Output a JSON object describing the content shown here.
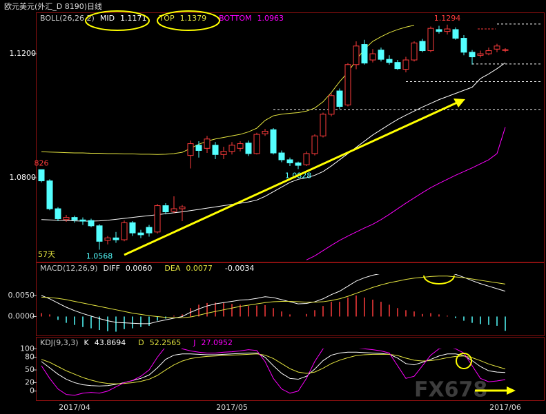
{
  "window_title": "欧元美元(外汇_D 8190)日线",
  "watermark": "FX678",
  "chart_data": [
    {
      "type": "candlestick",
      "title": "BOLL(26,26,2)",
      "categories": [
        null,
        null,
        null,
        null,
        "2017/04",
        null,
        null,
        null,
        null,
        null,
        null,
        null,
        null,
        null,
        null,
        null,
        null,
        null,
        null,
        null,
        null,
        null,
        null,
        "2017/05",
        null,
        null,
        null,
        null,
        null,
        null,
        null,
        null,
        null,
        null,
        null,
        null,
        null,
        null,
        null,
        null,
        null,
        null,
        null,
        null,
        null,
        null,
        null,
        null,
        null,
        null,
        null,
        null,
        null,
        null,
        null,
        null,
        "2017/06"
      ],
      "open": [
        1.0826,
        1.079,
        1.07,
        1.0665,
        1.0672,
        1.0664,
        1.0662,
        1.0645,
        1.0598,
        1.0606,
        1.06,
        1.0655,
        1.0622,
        1.064,
        1.0625,
        1.071,
        1.0692,
        1.07,
        1.0872,
        1.0905,
        1.0895,
        1.0905,
        1.0875,
        1.0885,
        1.0895,
        1.0912,
        1.0878,
        1.0942,
        1.0955,
        1.088,
        1.0858,
        1.0848,
        1.0842,
        1.0878,
        1.0935,
        1.1005,
        1.108,
        1.1035,
        1.1165,
        1.123,
        1.118,
        1.1212,
        1.1182,
        1.1172,
        1.115,
        1.118,
        1.124,
        1.121,
        1.1278,
        1.1272,
        1.1278,
        1.125,
        1.1205,
        1.1195,
        1.12,
        1.1215,
        1.1212
      ],
      "high": [
        1.0826,
        1.0795,
        1.0705,
        1.068,
        1.0678,
        1.0672,
        1.0668,
        1.065,
        1.0612,
        1.0625,
        1.0662,
        1.066,
        1.0632,
        1.0648,
        1.0715,
        1.0718,
        1.074,
        1.0712,
        1.092,
        1.0918,
        1.0935,
        1.0915,
        1.09,
        1.0915,
        1.0918,
        1.092,
        1.0945,
        1.0958,
        1.096,
        1.0888,
        1.0865,
        1.0852,
        1.0885,
        1.094,
        1.101,
        1.1072,
        1.1088,
        1.117,
        1.124,
        1.1245,
        1.1215,
        1.122,
        1.1195,
        1.118,
        1.119,
        1.124,
        1.1248,
        1.1288,
        1.129,
        1.1294,
        1.1285,
        1.126,
        1.1212,
        1.121,
        1.122,
        1.1232,
        1.1218
      ],
      "low": [
        1.0785,
        1.0695,
        1.066,
        1.0658,
        1.0655,
        1.0648,
        1.064,
        1.0568,
        1.0585,
        1.059,
        1.0595,
        1.0612,
        1.0605,
        1.061,
        1.062,
        1.0682,
        1.0685,
        1.066,
        1.083,
        1.0865,
        1.088,
        1.086,
        1.086,
        1.0875,
        1.0885,
        1.087,
        1.0875,
        1.0935,
        1.0875,
        1.085,
        1.0838,
        1.0828,
        1.0838,
        1.0872,
        1.093,
        1.0998,
        1.1022,
        1.103,
        1.115,
        1.1165,
        1.1172,
        1.1175,
        1.1165,
        1.1148,
        1.114,
        1.1175,
        1.1205,
        1.1205,
        1.1265,
        1.1262,
        1.1245,
        1.1195,
        1.1165,
        1.1188,
        1.1195,
        1.1205,
        1.1205
      ],
      "close": [
        1.079,
        1.07,
        1.0668,
        1.0672,
        1.0664,
        1.066,
        1.0645,
        1.0595,
        1.0606,
        1.06,
        1.0655,
        1.0622,
        1.0616,
        1.0622,
        1.071,
        1.069,
        1.07,
        1.0706,
        1.091,
        1.0888,
        1.0925,
        1.0875,
        1.0885,
        1.0905,
        1.091,
        1.0878,
        1.094,
        1.095,
        1.088,
        1.0858,
        1.0848,
        1.084,
        1.0878,
        1.0935,
        1.1005,
        1.1065,
        1.103,
        1.1165,
        1.1225,
        1.117,
        1.12,
        1.1182,
        1.1172,
        1.1152,
        1.118,
        1.1235,
        1.121,
        1.1282,
        1.1272,
        1.128,
        1.125,
        1.1205,
        1.119,
        1.12,
        1.121,
        1.1225,
        1.1213
      ],
      "up_color": "#ff3c3c",
      "down_color": "#54ffff",
      "series": [
        {
          "name": "MID",
          "readout": "1.1171",
          "color": "#ffffff",
          "values": [
            1.0665,
            1.0664,
            1.0663,
            1.0662,
            1.0661,
            1.066,
            1.066,
            1.0661,
            1.0663,
            1.0666,
            1.0669,
            1.0672,
            1.0675,
            1.0678,
            1.0681,
            1.0684,
            1.0687,
            1.069,
            1.0694,
            1.0698,
            1.0702,
            1.0706,
            1.071,
            1.0714,
            1.0718,
            1.0722,
            1.0728,
            1.074,
            1.0755,
            1.077,
            1.0785,
            1.0795,
            1.08,
            1.0808,
            1.082,
            1.0838,
            1.0858,
            1.0878,
            1.0898,
            1.0918,
            1.0938,
            1.0955,
            1.0972,
            1.0988,
            1.1002,
            1.1015,
            1.1028,
            1.104,
            1.1052,
            1.1062,
            1.1072,
            1.1082,
            1.1092,
            1.112,
            1.1135,
            1.1152,
            1.1171
          ]
        },
        {
          "name": "TOP",
          "readout": "1.1379",
          "color": "#e6e640",
          "values": [
            1.0884,
            1.0883,
            1.0882,
            1.0881,
            1.088,
            1.088,
            1.0879,
            1.0879,
            1.0878,
            1.0878,
            1.0877,
            1.0877,
            1.0876,
            1.0876,
            1.0875,
            1.0876,
            1.0878,
            1.0882,
            1.0895,
            1.0908,
            1.0918,
            1.0925,
            1.093,
            1.0935,
            1.094,
            1.0948,
            1.096,
            1.0985,
            1.1,
            1.1005,
            1.1008,
            1.101,
            1.1015,
            1.1025,
            1.1045,
            1.1075,
            1.111,
            1.114,
            1.118,
            1.1215,
            1.124,
            1.1255,
            1.1268,
            1.1278,
            1.1286,
            1.1292,
            null,
            null,
            null,
            null,
            null,
            null,
            null,
            null,
            null,
            null,
            null
          ]
        },
        {
          "name": "BOTTOM",
          "readout": "1.0963",
          "color": "#ff00ff",
          "values": [
            null,
            null,
            null,
            null,
            null,
            null,
            null,
            null,
            null,
            null,
            null,
            null,
            null,
            null,
            null,
            null,
            null,
            null,
            null,
            null,
            null,
            null,
            null,
            null,
            null,
            null,
            null,
            null,
            null,
            null,
            null,
            null,
            1.0535,
            1.0548,
            1.0565,
            1.0582,
            1.0598,
            1.0612,
            1.0625,
            1.0638,
            1.065,
            1.0665,
            1.0682,
            1.07,
            1.0718,
            1.0735,
            1.0752,
            1.0768,
            1.0782,
            1.0795,
            1.0808,
            1.082,
            1.0832,
            1.0845,
            1.0858,
            1.0878,
            1.0963
          ]
        }
      ],
      "ylim": [
        1.0529,
        1.1329
      ],
      "yticks": [
        {
          "value": 1.12,
          "label": "1.1200"
        },
        {
          "value": 1.08,
          "label": "1.0800"
        }
      ],
      "annotations": [
        {
          "label": "826",
          "value": 1.0826,
          "index": 0,
          "color": "#ff3c3c"
        },
        {
          "label": "1.0568",
          "value": 1.0568,
          "index": 7,
          "color": "#54ffff"
        },
        {
          "label": "1.0828",
          "value": 1.0828,
          "index": 31,
          "color": "#54ffff"
        },
        {
          "label": "1.1294",
          "value": 1.1294,
          "index": 49,
          "color": "#ff3c3c"
        }
      ],
      "levels": [
        {
          "value": 1.1296,
          "from": 55
        },
        {
          "value": 1.1167,
          "from": 52
        },
        {
          "value": 1.111,
          "from": 44
        },
        {
          "value": 1.102,
          "from": 28
        }
      ],
      "period_label": "57天"
    },
    {
      "type": "macd",
      "title": "MACD(12,26,9)",
      "series": [
        {
          "name": "DIFF",
          "readout": "0.0060",
          "color": "#ffffff",
          "values": [
            0.005,
            0.0042,
            0.0032,
            0.0022,
            0.0014,
            0.0007,
            0.0001,
            -0.0005,
            -0.001,
            -0.0014,
            -0.0015,
            -0.0016,
            -0.0017,
            -0.0017,
            -0.0012,
            -0.0008,
            -0.0004,
            0,
            0.001,
            0.0018,
            0.0025,
            0.003,
            0.0033,
            0.0036,
            0.0039,
            0.004,
            0.0043,
            0.0047,
            0.0045,
            0.004,
            0.0035,
            0.003,
            0.0031,
            0.0035,
            0.0042,
            0.0052,
            0.006,
            0.0072,
            0.0084,
            0.0092,
            0.0098,
            0.0102,
            0.0104,
            0.0105,
            0.0106,
            0.0108,
            0.0107,
            0.0108,
            0.0108,
            0.0106,
            0.01,
            0.0093,
            0.0085,
            0.0078,
            0.0072,
            0.0066,
            0.006
          ]
        },
        {
          "name": "DEA",
          "readout": "0.0077",
          "color": "#e6e640",
          "values": [
            0.0046,
            0.0045,
            0.0043,
            0.004,
            0.0036,
            0.0032,
            0.0028,
            0.0024,
            0.002,
            0.0016,
            0.0012,
            0.0008,
            0.0005,
            0.0002,
            0,
            -0.0002,
            -0.0003,
            -0.0003,
            -0.0001,
            0.0003,
            0.0008,
            0.0012,
            0.0016,
            0.002,
            0.0024,
            0.0027,
            0.003,
            0.0033,
            0.0035,
            0.0036,
            0.0036,
            0.0035,
            0.0034,
            0.0034,
            0.0035,
            0.0038,
            0.0042,
            0.0048,
            0.0055,
            0.0062,
            0.0069,
            0.0075,
            0.008,
            0.0084,
            0.0088,
            0.0091,
            0.0093,
            0.0095,
            0.0096,
            0.0096,
            0.0094,
            0.0092,
            0.0089,
            0.0086,
            0.0083,
            0.008,
            0.0077
          ]
        }
      ],
      "histogram": {
        "readout": "-0.0034",
        "up_color": "#ff3c3c",
        "down_color": "#54ffff",
        "values": [
          0.0008,
          0.0005,
          -0.0008,
          -0.0015,
          -0.002,
          -0.0025,
          -0.0028,
          -0.0032,
          -0.0035,
          -0.0036,
          -0.003,
          -0.0028,
          -0.0025,
          -0.0022,
          -0.001,
          -0.0005,
          0.0002,
          0.0005,
          0.002,
          0.0028,
          0.0032,
          0.0033,
          0.0032,
          0.003,
          0.0028,
          0.0025,
          0.0026,
          0.0027,
          0.002,
          0.0012,
          0.0005,
          0,
          0.0006,
          0.0015,
          0.0025,
          0.0035,
          0.0035,
          0.0045,
          0.005,
          0.0045,
          0.004,
          0.0035,
          0.0028,
          0.002,
          0.0015,
          0.0012,
          0.0006,
          0.0008,
          0.0005,
          0.0002,
          -0.0004,
          -0.001,
          -0.0015,
          -0.0018,
          -0.002,
          -0.0022,
          -0.0034
        ]
      },
      "ylim": [
        -0.0045,
        0.0125
      ],
      "yticks": [
        {
          "value": 0.005,
          "label": "0.0050"
        },
        {
          "value": 0,
          "label": "0.0000"
        }
      ]
    },
    {
      "type": "line",
      "title": "KDJ(9,3,3)",
      "series": [
        {
          "name": "K",
          "readout": "43.8694",
          "color": "#ffffff",
          "values": [
            70,
            55,
            40,
            28,
            20,
            15,
            13,
            12,
            13,
            16,
            20,
            25,
            30,
            38,
            55,
            75,
            85,
            88,
            88,
            87,
            86,
            86,
            87,
            88,
            89,
            90,
            90,
            80,
            60,
            42,
            30,
            28,
            35,
            52,
            72,
            85,
            90,
            92,
            92,
            91,
            90,
            89,
            87,
            78,
            65,
            62,
            68,
            75,
            83,
            88,
            88,
            84,
            72,
            58,
            48,
            45,
            43.8694
          ]
        },
        {
          "name": "D",
          "readout": "52.2565",
          "color": "#e6e640",
          "values": [
            75,
            68,
            58,
            48,
            40,
            32,
            26,
            21,
            18,
            17,
            18,
            20,
            23,
            28,
            37,
            50,
            62,
            71,
            77,
            80,
            82,
            83,
            84,
            85,
            86,
            87,
            88,
            85,
            77,
            65,
            53,
            45,
            42,
            45,
            54,
            65,
            73,
            79,
            84,
            86,
            87,
            87,
            87,
            84,
            78,
            73,
            71,
            72,
            75,
            79,
            82,
            83,
            79,
            72,
            64,
            58,
            52.2565
          ]
        },
        {
          "name": "J",
          "readout": "27.0952",
          "color": "#ff00ff",
          "values": [
            60,
            30,
            5,
            -8,
            -10,
            -5,
            -3,
            -5,
            0,
            10,
            20,
            25,
            35,
            50,
            80,
            105,
            108,
            100,
            95,
            92,
            90,
            90,
            92,
            93,
            95,
            98,
            96,
            70,
            30,
            5,
            -5,
            0,
            30,
            70,
            100,
            110,
            108,
            105,
            102,
            100,
            98,
            95,
            90,
            60,
            30,
            35,
            60,
            85,
            100,
            104,
            100,
            90,
            60,
            30,
            22,
            24,
            27.0952
          ]
        }
      ],
      "ylim": [
        -20,
        125
      ],
      "yticks": [
        100,
        80,
        50,
        20,
        0
      ]
    }
  ]
}
